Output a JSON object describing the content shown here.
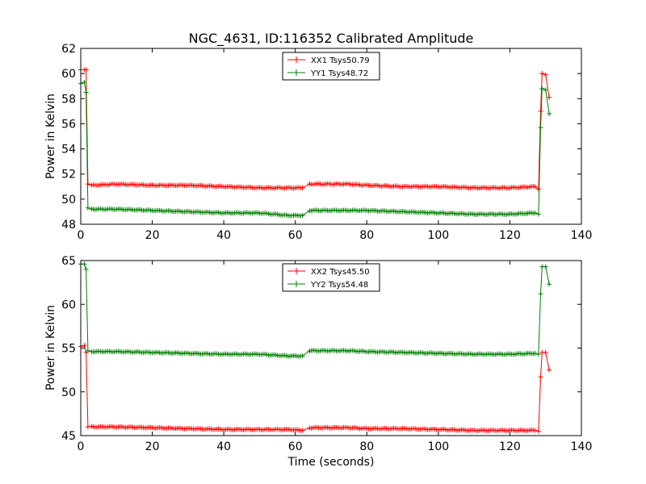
{
  "chart_data": [
    {
      "type": "line",
      "title": "NGC_4631, ID:116352 Calibrated Amplitude",
      "xlabel": "",
      "ylabel": "Power in Kelvin",
      "xlim": [
        0,
        140
      ],
      "ylim": [
        48,
        62
      ],
      "xticks": [
        0,
        20,
        40,
        60,
        80,
        100,
        120,
        140
      ],
      "yticks": [
        48,
        50,
        52,
        54,
        56,
        58,
        60,
        62
      ],
      "legend_position": "top-center",
      "grid": false,
      "series": [
        {
          "name": "XX1 Tsys50.79",
          "color": "#ff0000",
          "marker": "+",
          "x": [
            0,
            1,
            1.5,
            2,
            3,
            10,
            20,
            30,
            40,
            50,
            58,
            62,
            64,
            70,
            75,
            80,
            90,
            100,
            110,
            120,
            127,
            128,
            128.6,
            129,
            130,
            131
          ],
          "y": [
            60.3,
            60.3,
            60.3,
            51.2,
            51.1,
            51.2,
            51.1,
            51.1,
            51.0,
            50.9,
            50.9,
            50.9,
            51.2,
            51.2,
            51.2,
            51.1,
            51.0,
            51.0,
            50.9,
            50.9,
            51.0,
            50.8,
            57.0,
            60.0,
            59.9,
            58.1
          ]
        },
        {
          "name": "YY1 Tsys48.72",
          "color": "#008000",
          "marker": "+",
          "x": [
            0,
            1,
            1.5,
            2,
            3,
            10,
            20,
            30,
            40,
            50,
            58,
            62,
            64,
            70,
            75,
            80,
            90,
            100,
            110,
            120,
            127,
            128,
            128.6,
            129,
            130,
            131
          ],
          "y": [
            59.2,
            59.3,
            58.5,
            49.3,
            49.2,
            49.2,
            49.1,
            49.0,
            48.9,
            48.9,
            48.7,
            48.7,
            49.1,
            49.1,
            49.1,
            49.1,
            49.0,
            48.9,
            48.8,
            48.8,
            48.9,
            48.8,
            55.7,
            58.8,
            58.7,
            56.8
          ]
        }
      ]
    },
    {
      "type": "line",
      "title": "",
      "xlabel": "Time (seconds)",
      "ylabel": "Power in Kelvin",
      "xlim": [
        0,
        140
      ],
      "ylim": [
        45,
        65
      ],
      "xticks": [
        0,
        20,
        40,
        60,
        80,
        100,
        120,
        140
      ],
      "yticks": [
        45,
        50,
        55,
        60,
        65
      ],
      "legend_position": "top-center",
      "grid": false,
      "series": [
        {
          "name": "XX2 Tsys45.50",
          "color": "#ff0000",
          "marker": "+",
          "x": [
            0,
            1,
            1.5,
            2,
            3,
            10,
            20,
            30,
            40,
            50,
            58,
            62,
            64,
            70,
            75,
            80,
            90,
            100,
            110,
            120,
            127,
            128,
            128.6,
            129,
            130,
            131
          ],
          "y": [
            55.2,
            55.3,
            54.5,
            46.0,
            46.0,
            46.0,
            45.9,
            45.8,
            45.7,
            45.7,
            45.7,
            45.6,
            45.9,
            45.9,
            45.9,
            45.8,
            45.8,
            45.7,
            45.6,
            45.6,
            45.6,
            45.5,
            51.7,
            54.5,
            54.5,
            52.5
          ]
        },
        {
          "name": "YY2 Tsys54.48",
          "color": "#008000",
          "marker": "+",
          "x": [
            0,
            1,
            1.5,
            2,
            3,
            10,
            20,
            30,
            40,
            50,
            58,
            62,
            64,
            70,
            75,
            80,
            90,
            100,
            110,
            120,
            127,
            128,
            128.6,
            129,
            130,
            131
          ],
          "y": [
            64.6,
            64.6,
            64.0,
            54.7,
            54.6,
            54.6,
            54.5,
            54.4,
            54.3,
            54.3,
            54.1,
            54.1,
            54.7,
            54.7,
            54.7,
            54.6,
            54.5,
            54.4,
            54.3,
            54.3,
            54.4,
            54.3,
            61.2,
            64.3,
            64.3,
            62.3
          ]
        }
      ]
    }
  ]
}
